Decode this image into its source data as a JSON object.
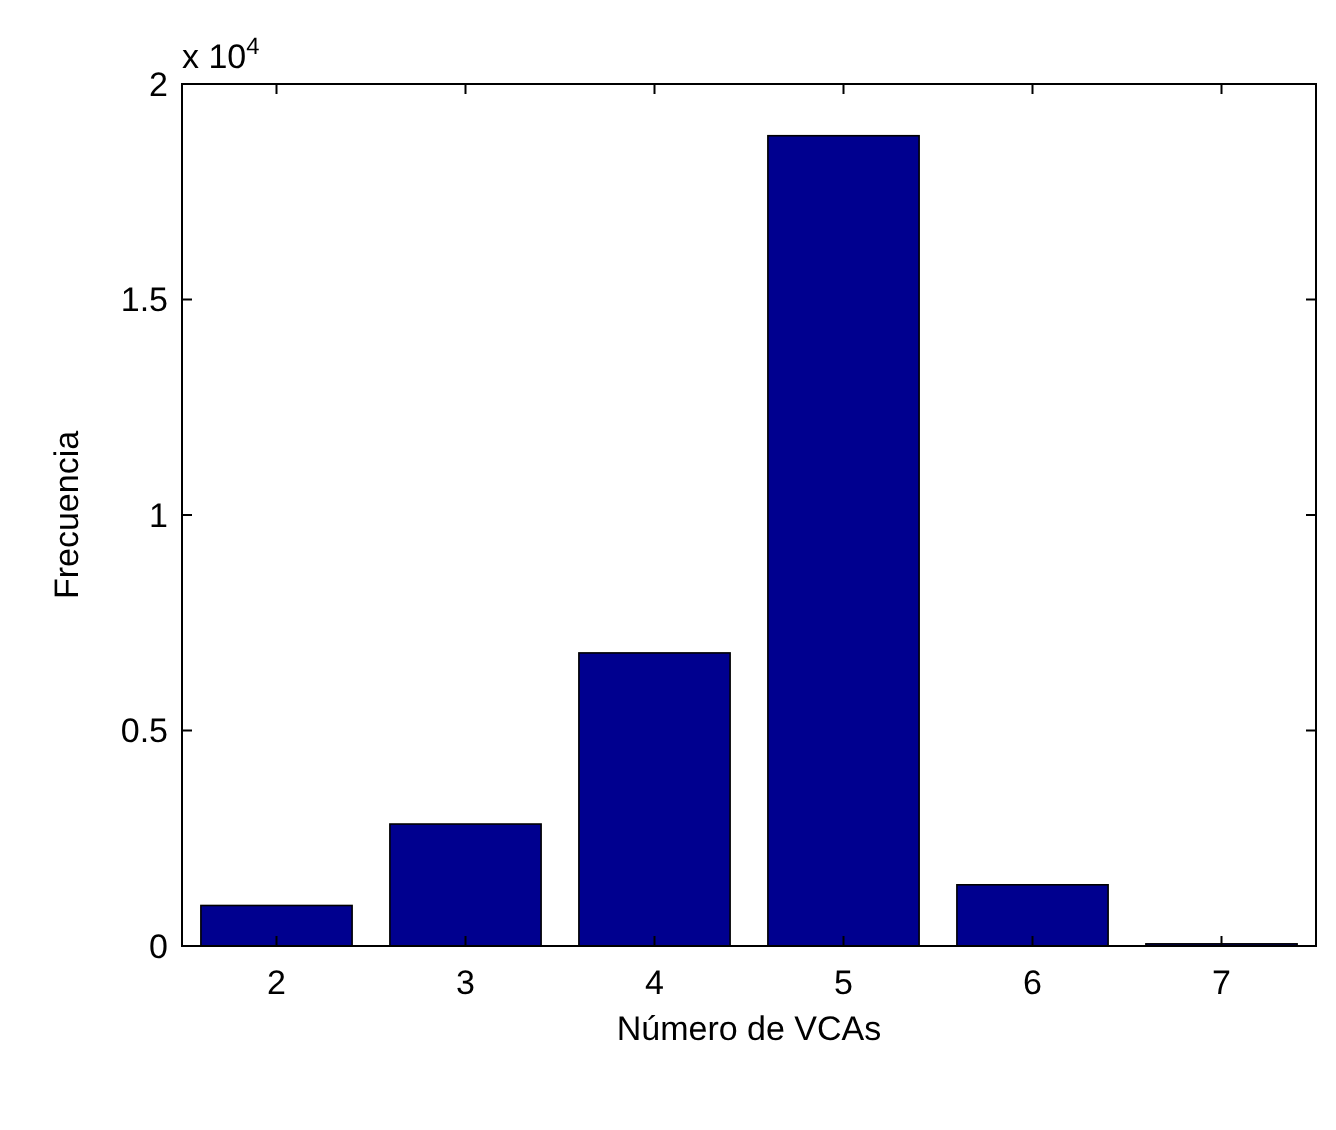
{
  "chart_data": {
    "type": "bar",
    "xlabel": "Número de VCAs",
    "ylabel": "Frecuencia",
    "categories": [
      "2",
      "3",
      "4",
      "5",
      "6",
      "7"
    ],
    "values": [
      0.094,
      0.283,
      0.68,
      1.88,
      0.142,
      0.005
    ],
    "color": "#00008f",
    "ylim": [
      0,
      2
    ],
    "yticks": [
      0,
      0.5,
      1,
      1.5,
      2
    ],
    "annotations": [
      "x 10$^{4}$"
    ],
    "grid": false
  }
}
